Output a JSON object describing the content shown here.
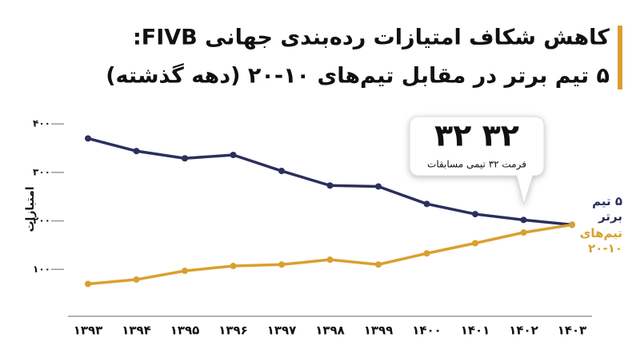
{
  "chart_data": {
    "type": "line",
    "title": "کاهش شکاف امتیازات رده‌بندی جهانی FIVB:",
    "subtitle": "۵ تیم برتر در مقابل تیم‌های ۱۰-۲۰ (دهه گذشته)",
    "y_label": "امتیازات",
    "annotation": {
      "title": "۳۲ ۳۲",
      "text": "فرمت ۳۲ تیمی مسابقات"
    },
    "categories": [
      "۱۳۹۳",
      "۱۳۹۴",
      "۱۳۹۵",
      "۱۳۹۶",
      "۱۳۹۷",
      "۱۳۹۸",
      "۱۳۹۹",
      "۱۴۰۰",
      "۱۴۰۱",
      "۱۴۰۲",
      "۱۴۰۳"
    ],
    "series": [
      {
        "name": "۵ تیم برتر",
        "color": "#2b2f5e",
        "values": [
          370,
          344,
          329,
          336,
          303,
          273,
          271,
          235,
          214,
          202,
          192
        ]
      },
      {
        "name": "تیم‌های ۱۰-۲۰",
        "color": "#d9a030",
        "values": [
          70,
          79,
          97,
          107,
          110,
          120,
          110,
          133,
          154,
          176,
          192
        ]
      }
    ],
    "ylim": [
      0,
      420
    ],
    "yticks": [
      {
        "value": 100,
        "label": "۱۰۰"
      },
      {
        "value": 200,
        "label": "۲۰۰"
      },
      {
        "value": 300,
        "label": "۳۰۰"
      },
      {
        "value": 400,
        "label": "۴۰۰"
      }
    ]
  }
}
